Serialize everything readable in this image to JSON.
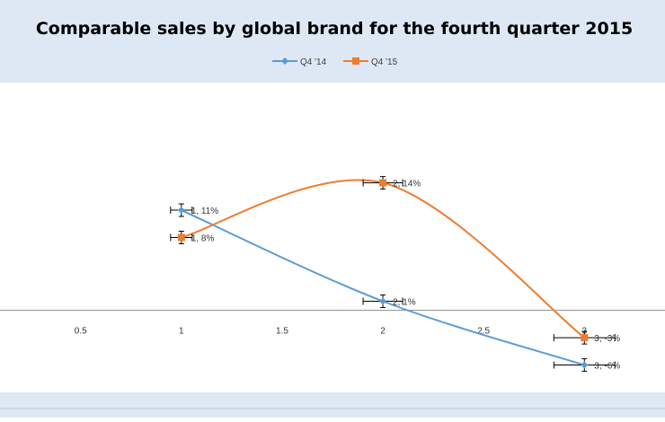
{
  "chart_data": {
    "type": "scatter",
    "title": "Comparable sales by global brand for the fourth quarter 2015",
    "xlabel": "",
    "ylabel": "",
    "xlim": [
      0.1,
      3.4
    ],
    "ylim": [
      -0.09,
      0.25
    ],
    "x_ticks": [
      0.5,
      1,
      1.5,
      2,
      2.5,
      3
    ],
    "x_tick_labels": [
      "0.5",
      "1",
      "1.5",
      "2",
      "2.5",
      "3"
    ],
    "smoothed_lines": true,
    "error_bars": true,
    "grid": false,
    "legend_position": "top",
    "series": [
      {
        "name": "Q4 '14",
        "color": "#5b9bd5",
        "marker": "diamond",
        "x": [
          1,
          2,
          3
        ],
        "values": [
          0.11,
          0.01,
          -0.06
        ],
        "labels": [
          "1, 11%",
          "2, 1%",
          "3, -6%"
        ]
      },
      {
        "name": "Q4 '15",
        "color": "#ed7d31",
        "marker": "square",
        "x": [
          1,
          2,
          3
        ],
        "values": [
          0.08,
          0.14,
          -0.03
        ],
        "labels": [
          "1, 8%",
          "2, 14%",
          "3, -3%"
        ]
      }
    ]
  }
}
